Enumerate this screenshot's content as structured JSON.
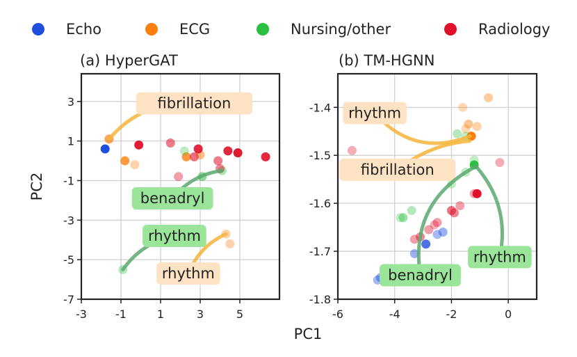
{
  "colors": {
    "Echo": "#1f4fe0",
    "ECG": "#ff7f0e",
    "Nursing/other": "#2bbf3f",
    "Radiology": "#e0102a",
    "label_orange_bg": "#fde3c3",
    "label_green_bg": "#9be59b",
    "arrow_orange": "#f5b43a",
    "arrow_green": "#5aa870"
  },
  "legend": [
    "Echo",
    "ECG",
    "Nursing/other",
    "Radiology"
  ],
  "shared_xlabel": "PC1",
  "chart_data": [
    {
      "id": "a",
      "type": "scatter",
      "title": "(a) HyperGAT",
      "xlabel": "",
      "ylabel": "PC2",
      "xlim": [
        -3,
        7
      ],
      "ylim": [
        -7,
        4.4
      ],
      "xticks": [
        -3,
        -1,
        1,
        3,
        5
      ],
      "yticks": [
        -7,
        -5,
        -3,
        -1,
        1,
        3
      ],
      "grid": true,
      "points": [
        {
          "cat": "Echo",
          "x": -1.8,
          "y": 0.6,
          "a": 1.0
        },
        {
          "cat": "ECG",
          "x": -1.6,
          "y": 1.1,
          "a": 0.7
        },
        {
          "cat": "ECG",
          "x": -0.8,
          "y": 0.0,
          "a": 0.8
        },
        {
          "cat": "ECG",
          "x": -0.3,
          "y": -0.2,
          "a": 0.35
        },
        {
          "cat": "ECG",
          "x": 2.3,
          "y": 0.2,
          "a": 0.8
        },
        {
          "cat": "ECG",
          "x": 3.0,
          "y": 0.3,
          "a": 0.5
        },
        {
          "cat": "ECG",
          "x": 4.3,
          "y": -3.7,
          "a": 0.35
        },
        {
          "cat": "ECG",
          "x": 4.5,
          "y": -4.2,
          "a": 0.35
        },
        {
          "cat": "Nursing/other",
          "x": -0.9,
          "y": -5.5,
          "a": 0.35
        },
        {
          "cat": "Nursing/other",
          "x": 2.2,
          "y": 0.5,
          "a": 0.3
        },
        {
          "cat": "Nursing/other",
          "x": 3.1,
          "y": -0.8,
          "a": 0.55
        },
        {
          "cat": "Nursing/other",
          "x": 4.1,
          "y": -0.5,
          "a": 0.4
        },
        {
          "cat": "Nursing/other",
          "x": 4.9,
          "y": 0.4,
          "a": 0.5
        },
        {
          "cat": "Radiology",
          "x": -0.1,
          "y": 0.8,
          "a": 0.95
        },
        {
          "cat": "Radiology",
          "x": 1.5,
          "y": 0.9,
          "a": 0.55
        },
        {
          "cat": "Radiology",
          "x": 1.9,
          "y": -0.8,
          "a": 0.4
        },
        {
          "cat": "Radiology",
          "x": 2.7,
          "y": 0.2,
          "a": 0.6
        },
        {
          "cat": "Radiology",
          "x": 2.9,
          "y": 0.6,
          "a": 0.9
        },
        {
          "cat": "Radiology",
          "x": 3.9,
          "y": 0.0,
          "a": 0.55
        },
        {
          "cat": "Radiology",
          "x": 4.0,
          "y": -0.4,
          "a": 0.5
        },
        {
          "cat": "Radiology",
          "x": 4.4,
          "y": 0.5,
          "a": 0.9
        },
        {
          "cat": "Radiology",
          "x": 4.9,
          "y": 0.4,
          "a": 0.95
        },
        {
          "cat": "Radiology",
          "x": 6.3,
          "y": 0.2,
          "a": 0.9
        }
      ],
      "annotations": [
        {
          "text": "fibrillation",
          "style": "orange",
          "tx": 2.7,
          "ty": 2.9,
          "ax": -1.6,
          "ay": 1.1,
          "bend": 0.25
        },
        {
          "text": "benadryl",
          "style": "green",
          "tx": 1.6,
          "ty": -1.9,
          "ax": 4.1,
          "ay": -0.5,
          "bend": -0.2
        },
        {
          "text": "rhythm",
          "style": "green",
          "tx": 1.7,
          "ty": -3.8,
          "ax": -0.9,
          "ay": -5.5,
          "bend": 0.2
        },
        {
          "text": "rhythm",
          "style": "orange",
          "tx": 2.4,
          "ty": -5.7,
          "ax": 4.3,
          "ay": -3.7,
          "bend": -0.2
        }
      ]
    },
    {
      "id": "b",
      "type": "scatter",
      "title": "(b) TM-HGNN",
      "xlabel": "",
      "ylabel": "",
      "xlim": [
        -6,
        1
      ],
      "ylim": [
        -1.8,
        -1.33
      ],
      "xticks": [
        -6,
        -4,
        -2,
        0
      ],
      "yticks": [
        -1.8,
        -1.7,
        -1.6,
        -1.5,
        -1.4
      ],
      "grid": true,
      "points": [
        {
          "cat": "Echo",
          "x": -4.5,
          "y": -1.755,
          "a": 0.45
        },
        {
          "cat": "Echo",
          "x": -4.6,
          "y": -1.76,
          "a": 0.4
        },
        {
          "cat": "Echo",
          "x": -3.3,
          "y": -1.705,
          "a": 0.45
        },
        {
          "cat": "Echo",
          "x": -2.9,
          "y": -1.685,
          "a": 0.8
        },
        {
          "cat": "Echo",
          "x": -2.5,
          "y": -1.665,
          "a": 0.4
        },
        {
          "cat": "Echo",
          "x": -2.3,
          "y": -1.66,
          "a": 0.45
        },
        {
          "cat": "ECG",
          "x": -1.3,
          "y": -1.46,
          "a": 1.0
        },
        {
          "cat": "ECG",
          "x": -1.6,
          "y": -1.4,
          "a": 0.3
        },
        {
          "cat": "ECG",
          "x": -0.7,
          "y": -1.38,
          "a": 0.4
        },
        {
          "cat": "ECG",
          "x": -1.4,
          "y": -1.435,
          "a": 0.45
        },
        {
          "cat": "ECG",
          "x": -1.1,
          "y": -1.44,
          "a": 0.35
        },
        {
          "cat": "ECG",
          "x": -1.5,
          "y": -1.445,
          "a": 0.3
        },
        {
          "cat": "Nursing/other",
          "x": -1.2,
          "y": -1.52,
          "a": 1.0
        },
        {
          "cat": "Nursing/other",
          "x": -1.8,
          "y": -1.455,
          "a": 0.35
        },
        {
          "cat": "Nursing/other",
          "x": -1.5,
          "y": -1.46,
          "a": 0.3
        },
        {
          "cat": "Nursing/other",
          "x": -1.2,
          "y": -1.51,
          "a": 0.3
        },
        {
          "cat": "Nursing/other",
          "x": -1.5,
          "y": -1.535,
          "a": 0.3
        },
        {
          "cat": "Nursing/other",
          "x": -2.0,
          "y": -1.56,
          "a": 0.3
        },
        {
          "cat": "Nursing/other",
          "x": -3.4,
          "y": -1.615,
          "a": 0.35
        },
        {
          "cat": "Nursing/other",
          "x": -3.7,
          "y": -1.63,
          "a": 0.45
        },
        {
          "cat": "Nursing/other",
          "x": -3.8,
          "y": -1.63,
          "a": 0.3
        },
        {
          "cat": "Radiology",
          "x": -1.1,
          "y": -1.58,
          "a": 1.0
        },
        {
          "cat": "Radiology",
          "x": -1.2,
          "y": -1.58,
          "a": 0.4
        },
        {
          "cat": "Radiology",
          "x": -5.5,
          "y": -1.49,
          "a": 0.35
        },
        {
          "cat": "Radiology",
          "x": -0.3,
          "y": -1.515,
          "a": 0.35
        },
        {
          "cat": "Radiology",
          "x": -1.7,
          "y": -1.605,
          "a": 0.4
        },
        {
          "cat": "Radiology",
          "x": -2.0,
          "y": -1.615,
          "a": 0.6
        },
        {
          "cat": "Radiology",
          "x": -1.9,
          "y": -1.62,
          "a": 0.5
        },
        {
          "cat": "Radiology",
          "x": -2.5,
          "y": -1.64,
          "a": 0.4
        },
        {
          "cat": "Radiology",
          "x": -2.6,
          "y": -1.645,
          "a": 0.35
        },
        {
          "cat": "Radiology",
          "x": -2.8,
          "y": -1.655,
          "a": 0.4
        },
        {
          "cat": "Radiology",
          "x": -3.1,
          "y": -1.67,
          "a": 0.5
        },
        {
          "cat": "Radiology",
          "x": -3.3,
          "y": -1.675,
          "a": 0.4
        }
      ],
      "annotations": [
        {
          "text": "rhythm",
          "style": "orange",
          "tx": -4.7,
          "ty": -1.412,
          "ax": -1.35,
          "ay": -1.46,
          "bend": 0.35
        },
        {
          "text": "fibrillation",
          "style": "orange",
          "tx": -3.9,
          "ty": -1.53,
          "ax": -1.35,
          "ay": -1.47,
          "bend": -0.15
        },
        {
          "text": "benadryl",
          "style": "green",
          "tx": -3.1,
          "ty": -1.75,
          "ax": -1.2,
          "ay": -1.525,
          "bend": -0.35
        },
        {
          "text": "rhythm",
          "style": "green",
          "tx": -0.3,
          "ty": -1.712,
          "ax": -1.15,
          "ay": -1.522,
          "bend": 0.25
        }
      ]
    }
  ]
}
